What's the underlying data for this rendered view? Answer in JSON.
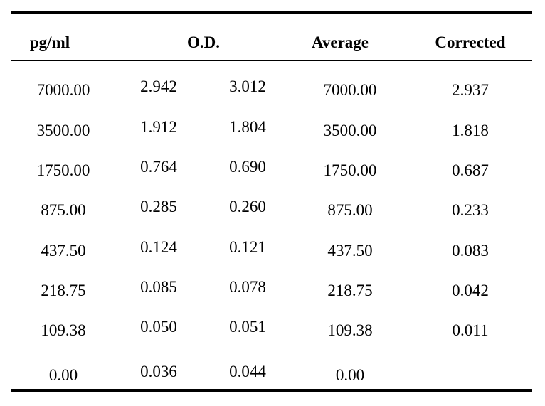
{
  "table": {
    "headers": {
      "pgml": "pg/ml",
      "od": "O.D.",
      "average": "Average",
      "corrected": "Corrected"
    },
    "rows": [
      {
        "pgml": "7000.00",
        "od1": "2.942",
        "od2": "3.012",
        "average": "7000.00",
        "corrected": "2.937"
      },
      {
        "pgml": "3500.00",
        "od1": "1.912",
        "od2": "1.804",
        "average": "3500.00",
        "corrected": "1.818"
      },
      {
        "pgml": "1750.00",
        "od1": "0.764",
        "od2": "0.690",
        "average": "1750.00",
        "corrected": "0.687"
      },
      {
        "pgml": "875.00",
        "od1": "0.285",
        "od2": "0.260",
        "average": "875.00",
        "corrected": "0.233"
      },
      {
        "pgml": "437.50",
        "od1": "0.124",
        "od2": "0.121",
        "average": "437.50",
        "corrected": "0.083"
      },
      {
        "pgml": "218.75",
        "od1": "0.085",
        "od2": "0.078",
        "average": "218.75",
        "corrected": "0.042"
      },
      {
        "pgml": "109.38",
        "od1": "0.050",
        "od2": "0.051",
        "average": "109.38",
        "corrected": "0.011"
      },
      {
        "pgml": "0.00",
        "od1": "0.036",
        "od2": "0.044",
        "average": "0.00",
        "corrected": ""
      }
    ]
  }
}
